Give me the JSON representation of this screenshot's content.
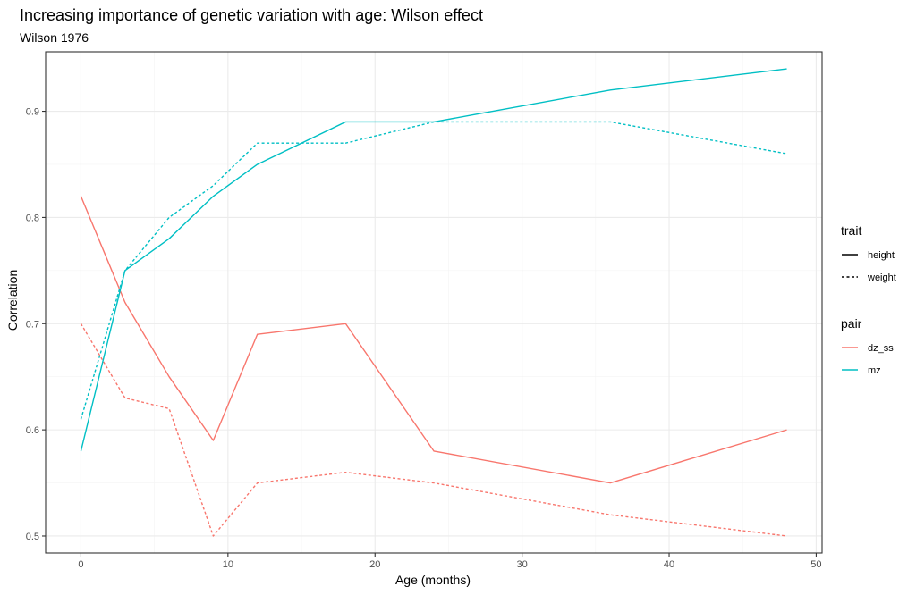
{
  "chart_data": {
    "type": "line",
    "title": "Increasing importance of genetic variation with age: Wilson effect",
    "subtitle": "Wilson 1976",
    "xlabel": "Age (months)",
    "ylabel": "Correlation",
    "xlim": [
      -2.4,
      50.4
    ],
    "ylim": [
      0.484,
      0.956
    ],
    "x_ticks": [
      0,
      10,
      20,
      30,
      40,
      50
    ],
    "y_ticks": [
      0.5,
      0.6,
      0.7,
      0.8,
      0.9
    ],
    "x_tick_labels": [
      "0",
      "10",
      "20",
      "30",
      "40",
      "50"
    ],
    "y_tick_labels": [
      "0.5",
      "0.6",
      "0.7",
      "0.8",
      "0.9"
    ],
    "grid": true,
    "legend_position": "right",
    "legends": [
      {
        "title": "trait",
        "entries": [
          {
            "label": "height",
            "linetype": "solid"
          },
          {
            "label": "weight",
            "linetype": "dashed"
          }
        ]
      },
      {
        "title": "pair",
        "entries": [
          {
            "label": "dz_ss",
            "color": "#F8766D"
          },
          {
            "label": "mz",
            "color": "#00BFC4"
          }
        ]
      }
    ],
    "x": [
      0,
      3,
      6,
      9,
      12,
      18,
      24,
      36,
      48
    ],
    "series": [
      {
        "pair": "dz_ss",
        "trait": "height",
        "color": "#F8766D",
        "linetype": "solid",
        "values": [
          0.82,
          0.72,
          0.65,
          0.59,
          0.69,
          0.7,
          0.58,
          0.55,
          0.6
        ]
      },
      {
        "pair": "dz_ss",
        "trait": "weight",
        "color": "#F8766D",
        "linetype": "dashed",
        "values": [
          0.7,
          0.63,
          0.62,
          0.5,
          0.55,
          0.56,
          0.55,
          0.52,
          0.5
        ]
      },
      {
        "pair": "mz",
        "trait": "height",
        "color": "#00BFC4",
        "linetype": "solid",
        "values": [
          0.58,
          0.75,
          0.78,
          0.82,
          0.85,
          0.89,
          0.89,
          0.92,
          0.94
        ]
      },
      {
        "pair": "mz",
        "trait": "weight",
        "color": "#00BFC4",
        "linetype": "dashed",
        "values": [
          0.61,
          0.75,
          0.8,
          0.83,
          0.87,
          0.87,
          0.89,
          0.89,
          0.86
        ]
      }
    ]
  }
}
